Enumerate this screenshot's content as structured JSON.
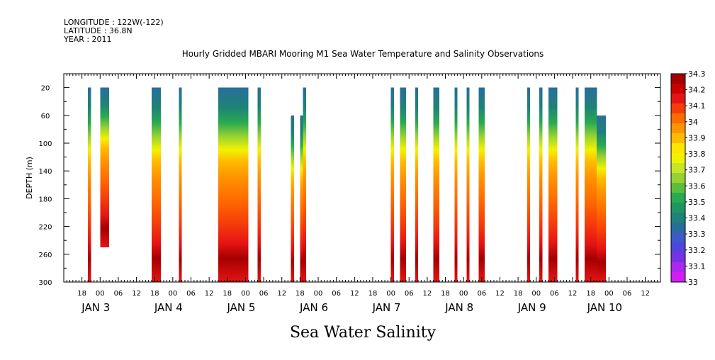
{
  "meta": {
    "longitude": "LONGITUDE : 122W(-122)",
    "latitude": "LATITUDE : 36.8N",
    "year": "YEAR : 2011"
  },
  "chart_data": {
    "type": "heatmap",
    "title": "Hourly Gridded MBARI Mooring M1 Sea Water Temperature and Salinity Observations",
    "footer_title": "Sea Water Salinity",
    "ylabel": "DEPTH (m)",
    "ylim": [
      300,
      0
    ],
    "yticks": [
      "20",
      "60",
      "100",
      "140",
      "180",
      "220",
      "260",
      "300"
    ],
    "ytick_values": [
      20,
      60,
      100,
      140,
      180,
      220,
      260,
      300
    ],
    "x_unit": "hours from Jan 2 12:00",
    "xlim": [
      0,
      197
    ],
    "hour_ticks": [
      {
        "t": 6,
        "label": "18"
      },
      {
        "t": 12,
        "label": "00"
      },
      {
        "t": 18,
        "label": "06"
      },
      {
        "t": 24,
        "label": "12"
      },
      {
        "t": 30,
        "label": "18"
      },
      {
        "t": 36,
        "label": "00"
      },
      {
        "t": 42,
        "label": "06"
      },
      {
        "t": 48,
        "label": "12"
      },
      {
        "t": 54,
        "label": "18"
      },
      {
        "t": 60,
        "label": "00"
      },
      {
        "t": 66,
        "label": "06"
      },
      {
        "t": 72,
        "label": "12"
      },
      {
        "t": 78,
        "label": "18"
      },
      {
        "t": 84,
        "label": "00"
      },
      {
        "t": 90,
        "label": "06"
      },
      {
        "t": 96,
        "label": "12"
      },
      {
        "t": 102,
        "label": "18"
      },
      {
        "t": 108,
        "label": "00"
      },
      {
        "t": 114,
        "label": "06"
      },
      {
        "t": 120,
        "label": "12"
      },
      {
        "t": 126,
        "label": "18"
      },
      {
        "t": 132,
        "label": "00"
      },
      {
        "t": 138,
        "label": "06"
      },
      {
        "t": 144,
        "label": "12"
      },
      {
        "t": 150,
        "label": "18"
      },
      {
        "t": 156,
        "label": "00"
      },
      {
        "t": 162,
        "label": "06"
      },
      {
        "t": 168,
        "label": "12"
      },
      {
        "t": 174,
        "label": "18"
      },
      {
        "t": 180,
        "label": "00"
      },
      {
        "t": 186,
        "label": "06"
      },
      {
        "t": 192,
        "label": "12"
      }
    ],
    "day_labels": [
      {
        "t": 12,
        "label": "JAN  3"
      },
      {
        "t": 36,
        "label": "JAN  4"
      },
      {
        "t": 60,
        "label": "JAN  5"
      },
      {
        "t": 84,
        "label": "JAN  6"
      },
      {
        "t": 108,
        "label": "JAN  7"
      },
      {
        "t": 132,
        "label": "JAN  8"
      },
      {
        "t": 156,
        "label": "JAN  9"
      },
      {
        "t": 180,
        "label": "JAN 10"
      }
    ],
    "colorbar": {
      "levels": [
        "34.3",
        "34.2",
        "34.1",
        "34",
        "33.9",
        "33.8",
        "33.7",
        "33.6",
        "33.5",
        "33.4",
        "33.3",
        "33.2",
        "33.1",
        "33"
      ],
      "colors": [
        "#a50000",
        "#c80000",
        "#e61414",
        "#f53c0a",
        "#ff6a00",
        "#ff9400",
        "#ffbb00",
        "#ffe600",
        "#f2f200",
        "#c8e628",
        "#96d232",
        "#5abe3c",
        "#28aa50",
        "#1e9664",
        "#1e8278",
        "#286e9b",
        "#3c5ac8",
        "#5046dc",
        "#7832e6",
        "#aa28f0",
        "#d21ef5"
      ]
    },
    "segments": [
      {
        "t0": 8,
        "t1": 9,
        "top": 20,
        "bottom": 300
      },
      {
        "t0": 12,
        "t1": 15,
        "top": 20,
        "bottom": 250
      },
      {
        "t0": 29,
        "t1": 32,
        "top": 20,
        "bottom": 300
      },
      {
        "t0": 38,
        "t1": 39,
        "top": 20,
        "bottom": 300
      },
      {
        "t0": 51,
        "t1": 61,
        "top": 20,
        "bottom": 300
      },
      {
        "t0": 64,
        "t1": 65,
        "top": 20,
        "bottom": 300
      },
      {
        "t0": 75,
        "t1": 76,
        "top": 60,
        "bottom": 300
      },
      {
        "t0": 78,
        "t1": 79,
        "top": 60,
        "bottom": 300
      },
      {
        "t0": 79,
        "t1": 80,
        "top": 20,
        "bottom": 300
      },
      {
        "t0": 108,
        "t1": 109,
        "top": 20,
        "bottom": 300
      },
      {
        "t0": 111,
        "t1": 113,
        "top": 20,
        "bottom": 300
      },
      {
        "t0": 116,
        "t1": 117,
        "top": 20,
        "bottom": 300
      },
      {
        "t0": 122,
        "t1": 124,
        "top": 20,
        "bottom": 300
      },
      {
        "t0": 129,
        "t1": 130,
        "top": 20,
        "bottom": 300
      },
      {
        "t0": 133,
        "t1": 134,
        "top": 20,
        "bottom": 300
      },
      {
        "t0": 137,
        "t1": 139,
        "top": 20,
        "bottom": 300
      },
      {
        "t0": 153,
        "t1": 154,
        "top": 20,
        "bottom": 300
      },
      {
        "t0": 157,
        "t1": 158,
        "top": 20,
        "bottom": 300
      },
      {
        "t0": 160,
        "t1": 163,
        "top": 20,
        "bottom": 300
      },
      {
        "t0": 169,
        "t1": 170,
        "top": 20,
        "bottom": 300
      },
      {
        "t0": 172,
        "t1": 176,
        "top": 20,
        "bottom": 300
      },
      {
        "t0": 176,
        "t1": 179,
        "top": 60,
        "bottom": 300
      }
    ]
  }
}
